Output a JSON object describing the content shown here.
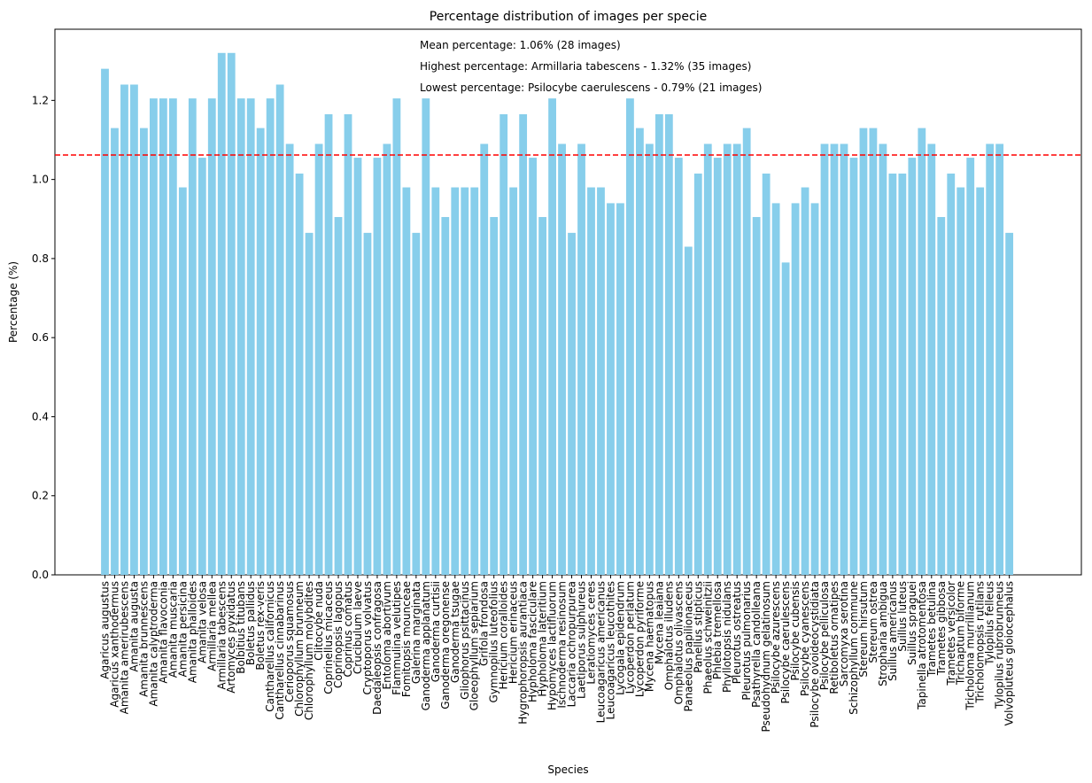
{
  "chart_data": {
    "type": "bar",
    "title": "Percentage distribution of images per specie",
    "xlabel": "Species",
    "ylabel": "Percentage (%)",
    "ylim": [
      0,
      1.38
    ],
    "yticks": [
      0.0,
      0.2,
      0.4,
      0.6,
      0.8,
      1.0,
      1.2
    ],
    "ytick_labels": [
      "0.0",
      "0.2",
      "0.4",
      "0.6",
      "0.8",
      "1.0",
      "1.2"
    ],
    "bar_color": "#87ceeb",
    "mean_line": {
      "value": 1.062,
      "color": "#ff0000",
      "style": "dashed"
    },
    "annotations": [
      "Mean percentage: 1.06% (28 images)",
      "Highest percentage: Armillaria tabescens - 1.32% (35 images)",
      "Lowest percentage: Psilocybe caerulescens - 0.79% (21 images)"
    ],
    "categories": [
      "Agaricus augustus",
      "Agaricus xanthodermus",
      "Amanita amerirubescens",
      "Amanita augusta",
      "Amanita brunnescens",
      "Amanita calyptroderma",
      "Amanita flavoconia",
      "Amanita muscaria",
      "Amanita persicina",
      "Amanita phalloides",
      "Amanita velosa",
      "Armillaria mellea",
      "Armillaria tabescens",
      "Artomyces pyxidatus",
      "Bolbitius titubans",
      "Boletus pallidus",
      "Boletus rex-veris",
      "Cantharellus californicus",
      "Cantharellus cinnabarinus",
      "Cerioporus squamosus",
      "Chlorophyllum brunneum",
      "Chlorophyllum molybdites",
      "Clitocybe nuda",
      "Coprinellus micaceus",
      "Coprinopsis lagopus",
      "Coprinus comatus",
      "Crucibulum laeve",
      "Cryptoporus volvatus",
      "Daedaleopsis confragosa",
      "Entoloma abortivum",
      "Flammulina velutipes",
      "Fomitopsis mounceae",
      "Galerina marginata",
      "Ganoderma applanatum",
      "Ganoderma curtisii",
      "Ganoderma oregonense",
      "Ganoderma tsugae",
      "Gliophorus psittacinus",
      "Gloeophyllum sepiarium",
      "Grifola frondosa",
      "Gymnopilus luteofolius",
      "Hericium coralloides",
      "Hericium erinaceus",
      "Hygrophoropsis aurantiaca",
      "Hypholoma fasciculare",
      "Hypholoma lateritium",
      "Hypomyces lactifluorum",
      "Ischnoderma resinosum",
      "Laccaria ochropurpurea",
      "Laetiporus sulphureus",
      "Leratiomyces ceres",
      "Leucoagaricus americanus",
      "Leucoagaricus leucothites",
      "Lycogala epidendrum",
      "Lycoperdon perlatum",
      "Lycoperdon pyriforme",
      "Mycena haematopus",
      "Mycena leaiana",
      "Omphalotus illudens",
      "Omphalotus olivascens",
      "Panaeolus papilionaceus",
      "Panellus stipticus",
      "Phaeolus schweinitzii",
      "Phlebia tremellosa",
      "Phyllotopsis nidulans",
      "Pleurotus ostreatus",
      "Pleurotus pulmonarius",
      "Psathyrella candolleana",
      "Pseudohydnum gelatinosum",
      "Psilocybe azurescens",
      "Psilocybe caerulescens",
      "Psilocybe cubensis",
      "Psilocybe cyanescens",
      "Psilocybe ovoideocystidiata",
      "Psilocybe pelliculosa",
      "Retiboletus ornatipes",
      "Sarcomyxa serotina",
      "Schizophyllum commune",
      "Stereum hirsutum",
      "Stereum ostrea",
      "Stropharia ambigua",
      "Suillus americanus",
      "Suillus luteus",
      "Suillus spraguei",
      "Tapinella atrotomentosa",
      "Trametes betulina",
      "Trametes gibbosa",
      "Trametes versicolor",
      "Trichaptum biforme",
      "Tricholoma murrillianum",
      "Tricholomopsis rutilans",
      "Tylopilus felleus",
      "Tylopilus rubrobrunneus",
      "Volvopluteus gloiocephalus"
    ],
    "values": [
      1.28,
      1.13,
      1.24,
      1.24,
      1.13,
      1.205,
      1.205,
      1.205,
      0.98,
      1.205,
      1.055,
      1.205,
      1.32,
      1.32,
      1.205,
      1.205,
      1.13,
      1.205,
      1.24,
      1.09,
      1.015,
      0.865,
      1.09,
      1.165,
      0.905,
      1.165,
      1.055,
      0.865,
      1.055,
      1.09,
      1.205,
      0.98,
      0.865,
      1.205,
      0.98,
      0.905,
      0.98,
      0.98,
      0.98,
      1.09,
      0.905,
      1.165,
      0.98,
      1.165,
      1.055,
      0.905,
      1.205,
      1.09,
      0.865,
      1.09,
      0.98,
      0.98,
      0.94,
      0.94,
      1.205,
      1.13,
      1.09,
      1.165,
      1.165,
      1.055,
      0.83,
      1.015,
      1.09,
      1.055,
      1.09,
      1.09,
      1.13,
      0.905,
      1.015,
      0.94,
      0.79,
      0.94,
      0.98,
      0.94,
      1.09,
      1.09,
      1.09,
      1.055,
      1.13,
      1.13,
      1.09,
      1.015,
      1.015,
      1.055,
      1.13,
      1.09,
      0.905,
      1.015,
      0.98,
      1.055,
      0.98,
      1.09,
      1.09,
      0.865
    ]
  }
}
